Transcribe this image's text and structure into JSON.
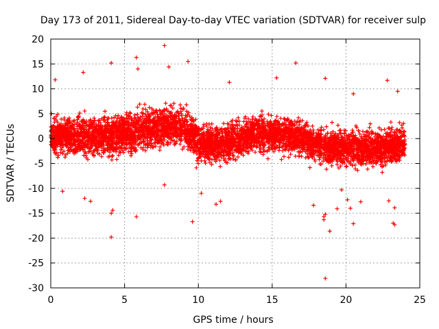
{
  "chart_data": {
    "type": "scatter",
    "title": "Day 173 of 2011, Sidereal Day-to-day VTEC variation (SDTVAR) for receiver sulp",
    "xlabel": "GPS time / hours",
    "ylabel": "SDTVAR / TECUs",
    "xlim": [
      0,
      25
    ],
    "ylim": [
      -30,
      20
    ],
    "xticks": [
      0,
      5,
      10,
      15,
      20,
      25
    ],
    "yticks": [
      -30,
      -25,
      -20,
      -15,
      -10,
      -5,
      0,
      5,
      10,
      15,
      20
    ],
    "grid": true,
    "marker": "plus",
    "series": [
      {
        "name": "SDTVAR",
        "color": "#ff0000",
        "x_range": [
          0,
          24
        ],
        "dense_band": [
          {
            "x": 0,
            "low": -4,
            "high": 5
          },
          {
            "x": 2,
            "low": -5,
            "high": 6
          },
          {
            "x": 4,
            "low": -5,
            "high": 6
          },
          {
            "x": 6,
            "low": -4,
            "high": 7
          },
          {
            "x": 8,
            "low": -3,
            "high": 8
          },
          {
            "x": 9,
            "low": -3,
            "high": 8
          },
          {
            "x": 10,
            "low": -6,
            "high": 4
          },
          {
            "x": 12,
            "low": -6,
            "high": 4
          },
          {
            "x": 14,
            "low": -4,
            "high": 6
          },
          {
            "x": 16,
            "low": -4,
            "high": 6
          },
          {
            "x": 18,
            "low": -6,
            "high": 4
          },
          {
            "x": 20,
            "low": -7,
            "high": 3
          },
          {
            "x": 22,
            "low": -7,
            "high": 3
          },
          {
            "x": 24,
            "low": -6,
            "high": 4
          }
        ],
        "outliers": [
          {
            "x": 7.7,
            "y": 18.7
          },
          {
            "x": 5.8,
            "y": 16.3
          },
          {
            "x": 9.3,
            "y": 15.5
          },
          {
            "x": 16.6,
            "y": 15.2
          },
          {
            "x": 4.1,
            "y": 15.2
          },
          {
            "x": 8.0,
            "y": 14.4
          },
          {
            "x": 5.9,
            "y": 14.0
          },
          {
            "x": 2.2,
            "y": 13.3
          },
          {
            "x": 15.3,
            "y": 12.2
          },
          {
            "x": 18.6,
            "y": 12.1
          },
          {
            "x": 0.3,
            "y": 11.8
          },
          {
            "x": 22.8,
            "y": 11.7
          },
          {
            "x": 12.1,
            "y": 11.3
          },
          {
            "x": 20.5,
            "y": 9.0
          },
          {
            "x": 23.5,
            "y": 9.5
          },
          {
            "x": 0.8,
            "y": -10.6
          },
          {
            "x": 2.3,
            "y": -12.0
          },
          {
            "x": 2.7,
            "y": -12.6
          },
          {
            "x": 4.2,
            "y": -14.4
          },
          {
            "x": 4.1,
            "y": -15.0
          },
          {
            "x": 5.8,
            "y": -15.7
          },
          {
            "x": 4.1,
            "y": -19.8
          },
          {
            "x": 9.6,
            "y": -16.7
          },
          {
            "x": 11.2,
            "y": -13.2
          },
          {
            "x": 11.5,
            "y": -12.6
          },
          {
            "x": 7.7,
            "y": -9.3
          },
          {
            "x": 10.2,
            "y": -11.0
          },
          {
            "x": 18.5,
            "y": -15.7
          },
          {
            "x": 18.5,
            "y": -16.3
          },
          {
            "x": 18.6,
            "y": -15.2
          },
          {
            "x": 17.8,
            "y": -13.4
          },
          {
            "x": 18.9,
            "y": -18.6
          },
          {
            "x": 19.4,
            "y": -14.1
          },
          {
            "x": 20.3,
            "y": -14.0
          },
          {
            "x": 20.5,
            "y": -17.1
          },
          {
            "x": 20.1,
            "y": -12.3
          },
          {
            "x": 21.0,
            "y": -12.7
          },
          {
            "x": 18.6,
            "y": -28.1
          },
          {
            "x": 23.3,
            "y": -13.9
          },
          {
            "x": 23.2,
            "y": -17.0
          },
          {
            "x": 23.3,
            "y": -17.3
          },
          {
            "x": 22.9,
            "y": -12.5
          },
          {
            "x": 19.7,
            "y": -10.3
          }
        ]
      }
    ]
  }
}
